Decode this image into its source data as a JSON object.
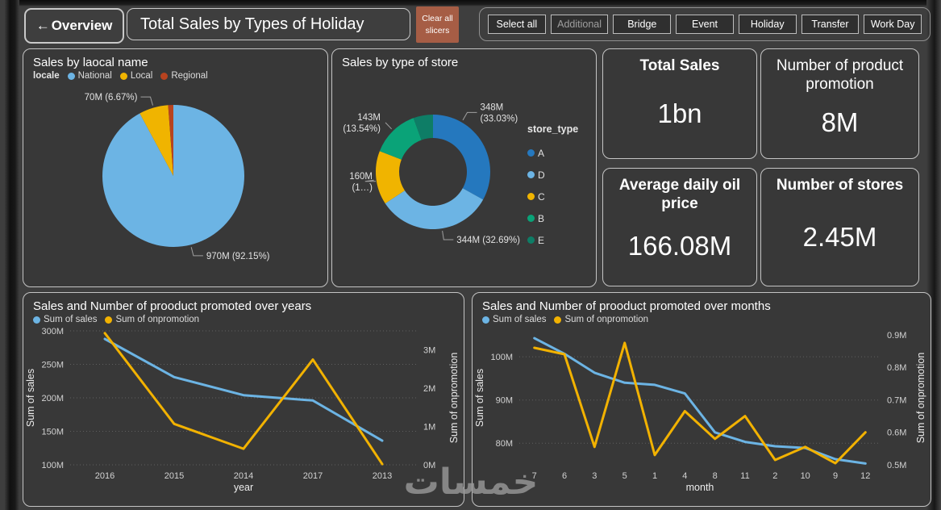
{
  "header": {
    "back_arrow": "←",
    "back_label": "Overview",
    "title": "Total Sales by Types of Holiday",
    "clear_button_line1": "Clear all",
    "clear_button_line2": "slicers",
    "slicer_buttons": [
      "Select all",
      "Additional",
      "Bridge",
      "Event",
      "Holiday",
      "Transfer",
      "Work Day"
    ]
  },
  "cards": [
    {
      "title": "Total Sales",
      "value": "1bn"
    },
    {
      "title": "Number of product promotion",
      "value": "8M"
    },
    {
      "title": "Average daily oil price",
      "value": "166.08M"
    },
    {
      "title": "Number of stores",
      "value": "2.45M"
    }
  ],
  "colors": {
    "accent_clear_button": "#a65d45",
    "sales_blue": "#6cb4e4",
    "promo_yellow": "#f2b201",
    "panel_border": "#c4c4c4",
    "background": "#3e3e3e"
  },
  "watermark": "خمسات",
  "chart_data": [
    {
      "type": "pie",
      "title": "Sales by laocal name",
      "legend_title": "locale",
      "legend_position": "top",
      "slices": [
        {
          "name": "National",
          "color": "#6cb4e4",
          "pct": 92.15,
          "value_label": "970M",
          "callout_lines": [
            "970M (92.15%)"
          ]
        },
        {
          "name": "Local",
          "color": "#f0b400",
          "pct": 6.67,
          "value_label": "70M",
          "callout_lines": [
            "70M (6.67%)"
          ]
        },
        {
          "name": "Regional",
          "color": "#b8431f",
          "pct": 1.18,
          "value_label": null,
          "callout_lines": null
        }
      ]
    },
    {
      "type": "donut",
      "title": "Sales by type of store",
      "legend_title": "store_type",
      "legend_position": "right",
      "slices": [
        {
          "name": "A",
          "color": "#2578be",
          "pct": 33.03,
          "value_label": "348M",
          "callout_lines": [
            "348M",
            "(33.03%)"
          ]
        },
        {
          "name": "D",
          "color": "#6cb4e4",
          "pct": 32.69,
          "value_label": "344M",
          "callout_lines": [
            "344M (32.69%)"
          ]
        },
        {
          "name": "C",
          "color": "#f0b400",
          "pct": 15.2,
          "value_label": "160M",
          "callout_lines": [
            "160M",
            "(1…)"
          ]
        },
        {
          "name": "B",
          "color": "#0aa378",
          "pct": 13.54,
          "value_label": "143M",
          "callout_lines": [
            "143M",
            "(13.54%)"
          ]
        },
        {
          "name": "E",
          "color": "#0e7d66",
          "pct": 5.54,
          "value_label": null,
          "callout_lines": null
        }
      ]
    },
    {
      "type": "line",
      "title": "Sales and Number of prooduct promoted over years",
      "xlabel": "year",
      "categories": [
        "2016",
        "2015",
        "2014",
        "2017",
        "2013"
      ],
      "left_axis": {
        "title": "Sum of sales",
        "range": [
          100,
          300
        ],
        "ticks": [
          100,
          150,
          200,
          250,
          300
        ],
        "tick_labels": [
          "100M",
          "150M",
          "200M",
          "250M",
          "300M"
        ]
      },
      "right_axis": {
        "title": "Sum of onpromotion",
        "range": [
          0,
          3.5
        ],
        "ticks": [
          0,
          1,
          2,
          3
        ],
        "tick_labels": [
          "0M",
          "1M",
          "2M",
          "3M"
        ]
      },
      "series": [
        {
          "name": "Sum of sales",
          "color": "#6cb4e4",
          "axis": "left",
          "values": [
            288,
            231,
            204,
            196,
            136
          ]
        },
        {
          "name": "Sum of onpromotion",
          "color": "#f2b201",
          "axis": "right",
          "values": [
            3.44,
            1.07,
            0.42,
            2.75,
            0.02
          ]
        }
      ],
      "grid": "dotted",
      "legend_position": "top"
    },
    {
      "type": "line",
      "title": "Sales and Number of prooduct promoted over months",
      "xlabel": "month",
      "categories": [
        "7",
        "6",
        "3",
        "5",
        "1",
        "4",
        "8",
        "11",
        "2",
        "10",
        "9",
        "12"
      ],
      "left_axis": {
        "title": "Sum of sales",
        "range": [
          75,
          106
        ],
        "ticks": [
          80,
          90,
          100
        ],
        "tick_labels": [
          "80M",
          "90M",
          "100M"
        ]
      },
      "right_axis": {
        "title": "Sum of onpromotion",
        "range": [
          0.5,
          0.912
        ],
        "ticks": [
          0.5,
          0.6,
          0.7,
          0.8,
          0.9
        ],
        "tick_labels": [
          "0.5M",
          "0.6M",
          "0.7M",
          "0.8M",
          "0.9M"
        ]
      },
      "series": [
        {
          "name": "Sum of sales",
          "color": "#6cb4e4",
          "axis": "left",
          "values": [
            104.3,
            100.7,
            96.3,
            94.0,
            93.5,
            91.5,
            82.5,
            80.3,
            79.3,
            78.9,
            76.3,
            75.3
          ]
        },
        {
          "name": "Sum of onpromotion",
          "color": "#f2b201",
          "axis": "right",
          "values": [
            0.86,
            0.84,
            0.555,
            0.875,
            0.53,
            0.665,
            0.58,
            0.65,
            0.515,
            0.555,
            0.505,
            0.6
          ]
        }
      ],
      "grid": "dotted",
      "legend_position": "top"
    }
  ]
}
